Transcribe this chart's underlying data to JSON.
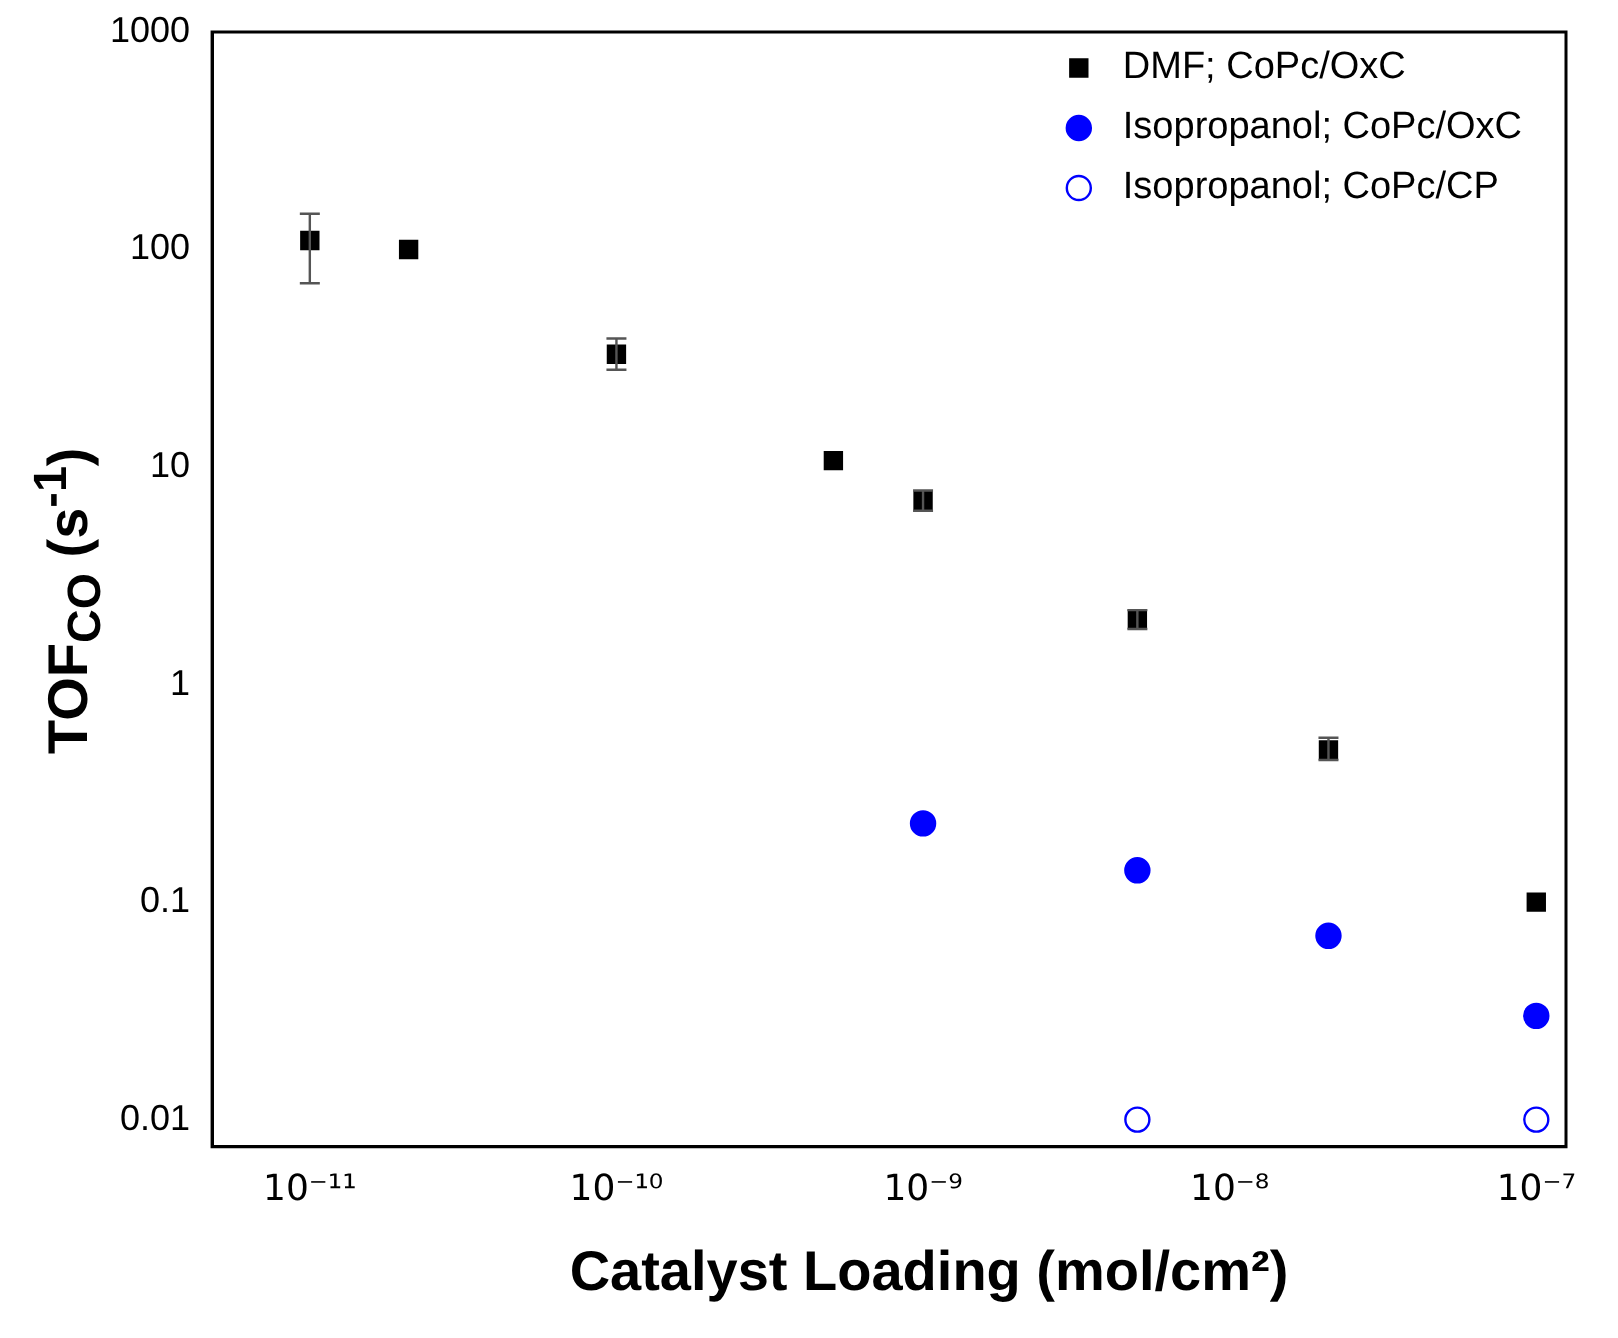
{
  "chart_data": {
    "type": "scatter",
    "xlabel": "Catalyst Loading (mol/cm²)",
    "ylabel": "TOF$_{CO}$ (s$^{-1}$)",
    "log": "xy",
    "grid": false,
    "legend": "top right",
    "xlim": [
      4.8e-12,
      1.25e-07
    ],
    "ylim": [
      0.0075,
      1000
    ],
    "xticks": [
      {
        "value": 1e-11,
        "label": "10⁻¹¹"
      },
      {
        "value": 1e-10,
        "label": "10⁻¹⁰"
      },
      {
        "value": 1e-09,
        "label": "10⁻⁹"
      },
      {
        "value": 1e-08,
        "label": "10⁻⁸"
      },
      {
        "value": 1e-07,
        "label": "10⁻⁷"
      }
    ],
    "yticks": [
      0.01,
      0.1,
      1,
      10,
      100,
      1000
    ],
    "series": [
      {
        "name": "DMF; CoPc/OxC",
        "color": "#000000",
        "marker": "square",
        "x": [
          1e-11,
          2.1e-11,
          1e-10,
          5.1e-10,
          1e-09,
          5e-09,
          2.1e-08,
          1e-07
        ],
        "values": [
          110,
          100,
          33,
          10.7,
          7,
          2,
          0.5,
          0.1
        ],
        "errors": [
          [
            70,
            146
          ],
          null,
          [
            28,
            39
          ],
          null,
          [
            6.3,
            7.8
          ],
          [
            1.8,
            2.2
          ],
          [
            0.45,
            0.57
          ],
          null
        ]
      },
      {
        "name": "Isopropanol; CoPc/OxC",
        "color": "#0000ff",
        "marker": "circle",
        "x": [
          1e-09,
          5e-09,
          2.1e-08,
          1e-07
        ],
        "values": [
          0.23,
          0.14,
          0.07,
          0.03
        ]
      },
      {
        "name": "Isopropanol; CoPc/CP",
        "color": "#0000ff",
        "marker": "open-circle",
        "x": [
          5e-09,
          1e-07
        ],
        "values": [
          0.01,
          0.01
        ]
      }
    ]
  }
}
